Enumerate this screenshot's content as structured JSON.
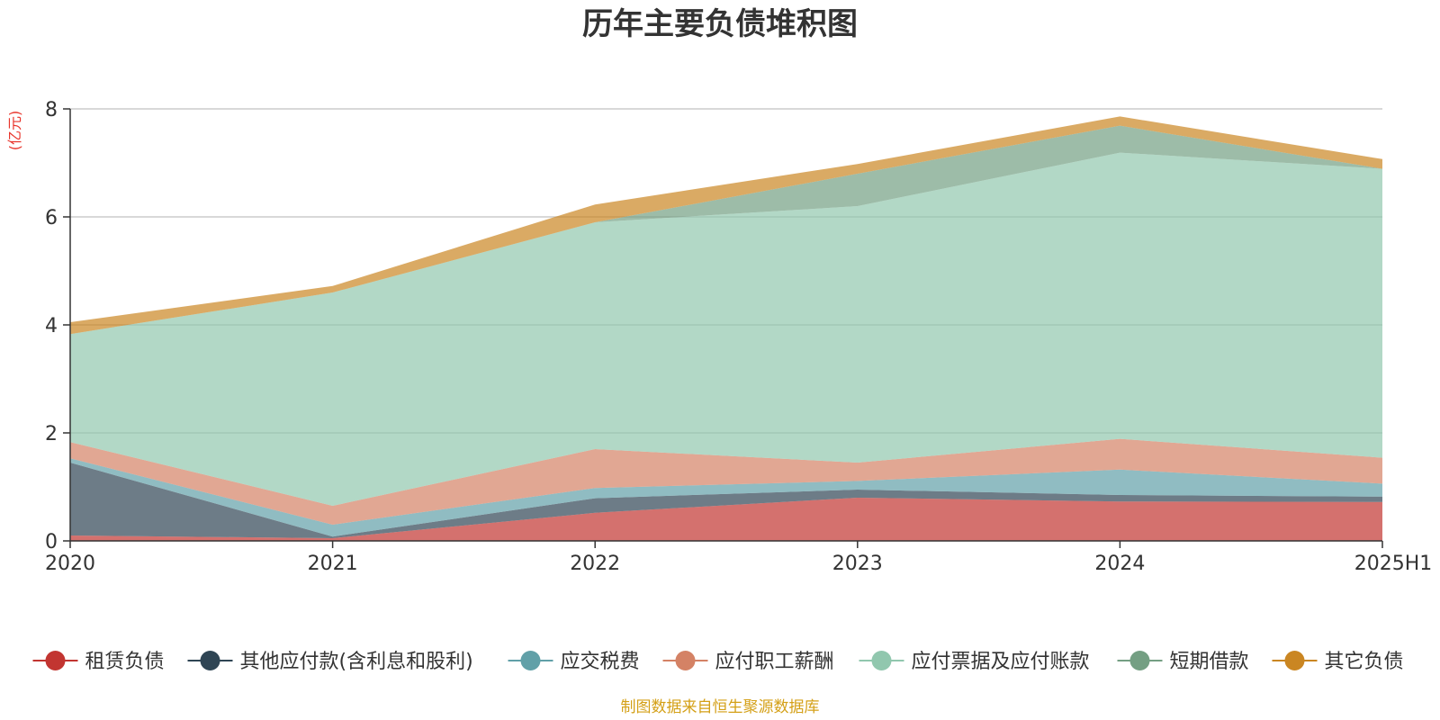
{
  "chart_data": {
    "type": "area",
    "stacked": true,
    "title": "历年主要负债堆积图",
    "unit_label": "(亿元)",
    "categories": [
      "2020",
      "2021",
      "2022",
      "2023",
      "2024",
      "2025H1"
    ],
    "y_ticks": [
      "0",
      "2",
      "4",
      "6",
      "8"
    ],
    "ylim": [
      0,
      8
    ],
    "grid": true,
    "legend_position": "bottom",
    "series": [
      {
        "name": "租赁负债",
        "color": "#c23531",
        "values": [
          0.1,
          0.05,
          0.52,
          0.8,
          0.73,
          0.72
        ]
      },
      {
        "name": "其他应付款(含利息和股利)",
        "color": "#2f4554",
        "values": [
          1.35,
          0.03,
          0.27,
          0.15,
          0.12,
          0.1
        ]
      },
      {
        "name": "应交税费",
        "color": "#61a0a8",
        "values": [
          0.08,
          0.22,
          0.19,
          0.16,
          0.47,
          0.24
        ]
      },
      {
        "name": "应付职工薪酬",
        "color": "#d48265",
        "values": [
          0.3,
          0.35,
          0.72,
          0.34,
          0.57,
          0.48
        ]
      },
      {
        "name": "应付票据及应付账款",
        "color": "#91c7ae",
        "values": [
          2.0,
          3.95,
          4.2,
          4.75,
          5.3,
          5.35
        ]
      },
      {
        "name": "短期借款",
        "color": "#749f83",
        "values": [
          0.0,
          0.0,
          0.0,
          0.6,
          0.5,
          0.0
        ]
      },
      {
        "name": "其它负债",
        "color": "#ca8622",
        "values": [
          0.22,
          0.12,
          0.33,
          0.18,
          0.17,
          0.18
        ]
      }
    ]
  },
  "footer": "制图数据来自恒生聚源数据库"
}
